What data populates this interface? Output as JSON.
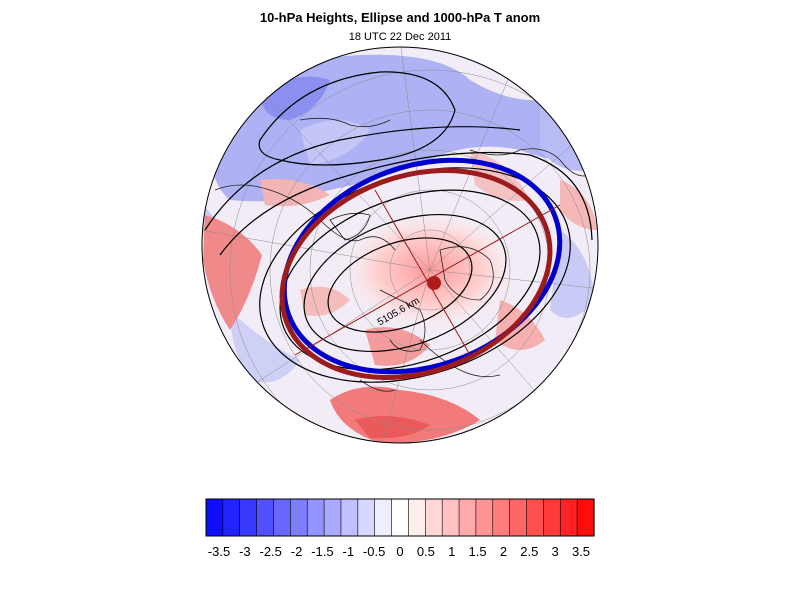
{
  "header": {
    "title": "10-hPa Heights, Ellipse and 1000-hPa T anom",
    "subtitle": "18 UTC 22 Dec 2011"
  },
  "map": {
    "projection": "north-polar-stereographic",
    "distance_label": "5105.6 km",
    "ellipse_colors": {
      "fitted": "#0000cc",
      "reference": "#9b1c1c"
    },
    "center_marker_color": "#b01c1c",
    "contour_color": "#000000"
  },
  "colorbar": {
    "tick_labels": [
      "-3.5",
      "-3",
      "-2.5",
      "-2",
      "-1.5",
      "-1",
      "-0.5",
      "0",
      "0.5",
      "1",
      "1.5",
      "2",
      "2.5",
      "3",
      "3.5"
    ],
    "colors": [
      "#0d0dff",
      "#2323ff",
      "#3a3aff",
      "#5050ff",
      "#6767ff",
      "#7d7dff",
      "#9494ff",
      "#aaaaff",
      "#c1c1ff",
      "#d7d7ff",
      "#eeeeff",
      "#ffffff",
      "#ffeeee",
      "#ffd7d7",
      "#ffc1c1",
      "#ffaaaa",
      "#ff9494",
      "#ff7d7d",
      "#ff6767",
      "#ff5050",
      "#ff3a3a",
      "#ff2323",
      "#ff0d0d"
    ]
  }
}
